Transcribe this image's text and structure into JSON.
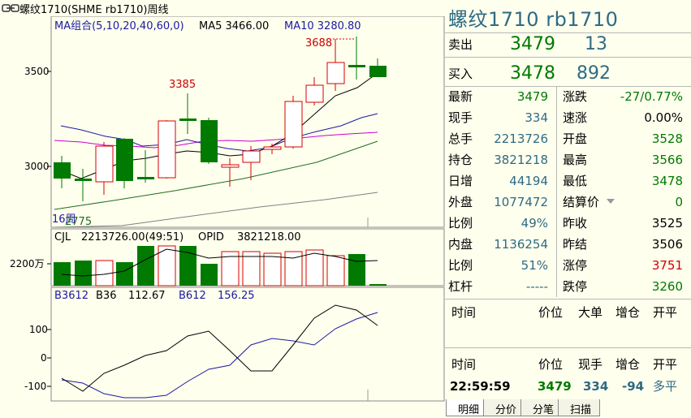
{
  "window": {
    "title": "螺纹1710(SHME rb1710)周线"
  },
  "main_chart": {
    "legend_ma": "MA组合(5,10,20,40,60,0)",
    "legend_ma5": "MA5 3466.00",
    "legend_ma10": "MA10 3280.80",
    "annot_high": "3688",
    "annot_mid": "3385",
    "annot_low": "2775",
    "period_label": "16周",
    "price_labels": [
      "3500",
      "3000"
    ],
    "colors": {
      "up": "#d40000",
      "down": "#007a00",
      "ma5": "#000000",
      "ma10": "#1a1aa0",
      "ma20": "#cc00cc",
      "ma40": "#1e6e1e",
      "ma60": "#808080"
    }
  },
  "volume_panel": {
    "legend_cjl": "CJL",
    "legend_value": "2213726.00(49:51)",
    "legend_opid": "OPID",
    "legend_opid_value": "3821218.00",
    "axis_label": "2200万"
  },
  "bias_panel": {
    "legend_b3612": "B3612",
    "legend_b36": "B36",
    "legend_b36_value": "112.67",
    "legend_b612": "B612",
    "legend_b612_value": "156.25",
    "axis_labels": [
      "100",
      "0",
      "-100"
    ]
  },
  "quote": {
    "title": "螺纹1710  rb1710",
    "sell_label": "卖出",
    "sell_price": "3479",
    "sell_qty": "13",
    "buy_label": "买入",
    "buy_price": "3478",
    "buy_qty": "892",
    "rows": [
      {
        "l1": "最新",
        "v1": "3479",
        "c1": "green",
        "l2": "涨跌",
        "v2": "-27/0.77%",
        "c2": "green"
      },
      {
        "l1": "现手",
        "v1": "334",
        "c1": "teal",
        "l2": "速涨",
        "v2": "0.00%",
        "c2": "black"
      },
      {
        "l1": "总手",
        "v1": "2213726",
        "c1": "teal",
        "l2": "开盘",
        "v2": "3528",
        "c2": "green"
      },
      {
        "l1": "持仓",
        "v1": "3821218",
        "c1": "teal",
        "l2": "最高",
        "v2": "3566",
        "c2": "green"
      },
      {
        "l1": "日增",
        "v1": "44194",
        "c1": "teal",
        "l2": "最低",
        "v2": "3478",
        "c2": "green"
      },
      {
        "l1": "外盘",
        "v1": "1077472",
        "c1": "teal",
        "l2": "结算价",
        "v2": "0",
        "c2": "green"
      },
      {
        "l1": "比例",
        "v1": "49%",
        "c1": "teal",
        "l2": "昨收",
        "v2": "3525",
        "c2": "black"
      },
      {
        "l1": "内盘",
        "v1": "1136254",
        "c1": "teal",
        "l2": "昨结",
        "v2": "3506",
        "c2": "black"
      },
      {
        "l1": "比例",
        "v1": "51%",
        "c1": "teal",
        "l2": "涨停",
        "v2": "3751",
        "c2": "red"
      },
      {
        "l1": "杠杆",
        "v1": "-----",
        "c1": "teal",
        "l2": "跌停",
        "v2": "3260",
        "c2": "green"
      }
    ],
    "trades_header": {
      "time": "时间",
      "price": "价位",
      "big": "大单",
      "oi": "增仓",
      "flag": "开平"
    },
    "ticks_header": {
      "time": "时间",
      "price": "价位",
      "hand": "现手",
      "oi": "增仓",
      "flag": "开平"
    },
    "tick": {
      "time": "22:59:59",
      "price": "3479",
      "hand": "334",
      "oi": "-94",
      "flag": "多平"
    }
  },
  "tabs": [
    "明细",
    "分价",
    "分笔",
    "扫描"
  ]
}
